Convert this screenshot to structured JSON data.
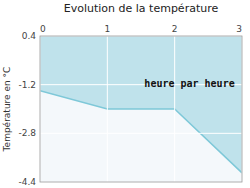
{
  "chart_data": {
    "type": "area",
    "title": "Evolution de la température",
    "y_label": "Température en °C",
    "x": [
      0,
      1,
      2,
      3
    ],
    "values": [
      -1.4,
      -2.0,
      -2.0,
      -4.1
    ],
    "baseline": 0.4,
    "color": "#7ec8d8",
    "xlim": [
      0,
      3
    ],
    "ylim": [
      -4.4,
      0.4
    ],
    "xticks": [
      0,
      1,
      2,
      3
    ],
    "yticks": [
      0.4,
      -1.2,
      -2.8,
      -4.4
    ],
    "grid": true,
    "annotations": [
      {
        "text": "heure par heure",
        "x": 1.55,
        "y": -1.05
      }
    ]
  }
}
